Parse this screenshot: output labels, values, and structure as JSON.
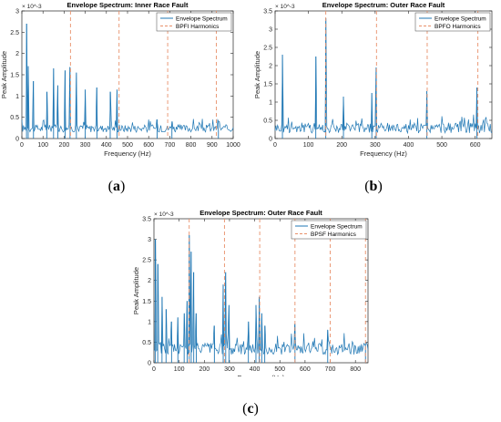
{
  "colors": {
    "spectrum": "#1f77b4",
    "harmonics": "#e8906a",
    "axis": "#262626",
    "grid": "#e6e6e6"
  },
  "captions": [
    {
      "open": "(",
      "letter": "a",
      "close": ")"
    },
    {
      "open": "(",
      "letter": "b",
      "close": ")"
    },
    {
      "open": "(",
      "letter": "c",
      "close": ")"
    }
  ],
  "chart_data": [
    {
      "type": "line",
      "title": "Envelope Spectrum: Inner Race Fault",
      "xlabel": "Frequency (Hz)",
      "ylabel": "Peak Amplitude",
      "yexponent": "× 10^-3",
      "xlim": [
        0,
        1000
      ],
      "ylim": [
        0,
        0.003
      ],
      "xticks": [
        0,
        100,
        200,
        300,
        400,
        500,
        600,
        700,
        800,
        900,
        1000
      ],
      "yticks": [
        0,
        0.0005,
        0.001,
        0.0015,
        0.002,
        0.0025,
        0.003
      ],
      "ytick_labels": [
        "0",
        "0.5",
        "1",
        "1.5",
        "2",
        "2.5",
        "3"
      ],
      "legend": {
        "position": "top-right",
        "entries": [
          "Envelope Spectrum",
          "BPFI Harmonics"
        ]
      },
      "series": [
        {
          "name": "Envelope Spectrum",
          "peaks": [
            [
              22,
              0.0027
            ],
            [
              30,
              0.0017
            ],
            [
              55,
              0.00135
            ],
            [
              118,
              0.0011
            ],
            [
              150,
              0.00165
            ],
            [
              170,
              0.00125
            ],
            [
              205,
              0.0016
            ],
            [
              228,
              0.00168
            ],
            [
              258,
              0.00155
            ],
            [
              300,
              0.00115
            ],
            [
              355,
              0.0012
            ],
            [
              418,
              0.0011
            ],
            [
              450,
              0.00115
            ],
            [
              640,
              0.00045
            ],
            [
              710,
              0.0004
            ],
            [
              930,
              0.0004
            ]
          ],
          "baseline": {
            "low": 0.00015,
            "high": 0.0004
          }
        },
        {
          "name": "BPFI Harmonics",
          "x": [
            230,
            460,
            690,
            920
          ]
        }
      ]
    },
    {
      "type": "line",
      "title": "Envelope Spectrum: Outer Race Fault",
      "xlabel": "Frequency (Hz)",
      "ylabel": "Peak Amplitude",
      "yexponent": "× 10^-3",
      "xlim": [
        0,
        650
      ],
      "ylim": [
        0,
        0.0035
      ],
      "xticks": [
        0,
        100,
        200,
        300,
        400,
        500,
        600
      ],
      "yticks": [
        0,
        0.0005,
        0.001,
        0.0015,
        0.002,
        0.0025,
        0.003,
        0.0035
      ],
      "ytick_labels": [
        "0",
        "0.5",
        "1",
        "1.5",
        "2",
        "2.5",
        "3",
        "3.5"
      ],
      "legend": {
        "position": "top-right",
        "entries": [
          "Envelope Spectrum",
          "BPFO Harmonics"
        ]
      },
      "series": [
        {
          "name": "Envelope Spectrum",
          "peaks": [
            [
              22,
              0.0023
            ],
            [
              122,
              0.00225
            ],
            [
              152,
              0.0033
            ],
            [
              205,
              0.00115
            ],
            [
              290,
              0.00125
            ],
            [
              303,
              0.00195
            ],
            [
              455,
              0.0013
            ],
            [
              605,
              0.0014
            ]
          ],
          "baseline": {
            "low": 0.00015,
            "high": 0.00055
          }
        },
        {
          "name": "BPFO Harmonics",
          "x": [
            152,
            304,
            456,
            608
          ]
        }
      ]
    },
    {
      "type": "line",
      "title": "Envelope Spectrum: Outer Race Fault",
      "xlabel": "Frequency (Hz)",
      "ylabel": "Peak Amplitude",
      "yexponent": "× 10^-3",
      "xlim": [
        0,
        850
      ],
      "ylim": [
        0,
        0.0035
      ],
      "xticks": [
        0,
        100,
        200,
        300,
        400,
        500,
        600,
        700,
        800
      ],
      "yticks": [
        0,
        0.0005,
        0.001,
        0.0015,
        0.002,
        0.0025,
        0.003,
        0.0035
      ],
      "ytick_labels": [
        "0",
        "0.5",
        "1",
        "1.5",
        "2",
        "2.5",
        "3",
        "3.5"
      ],
      "legend": {
        "position": "top-right",
        "entries": [
          "Envelope Spectrum",
          "BPSF Harmonics"
        ]
      },
      "series": [
        {
          "name": "Envelope Spectrum",
          "peaks": [
            [
              5,
              0.003
            ],
            [
              15,
              0.0024
            ],
            [
              32,
              0.0016
            ],
            [
              48,
              0.0013
            ],
            [
              70,
              0.001
            ],
            [
              95,
              0.0011
            ],
            [
              120,
              0.0012
            ],
            [
              132,
              0.0015
            ],
            [
              140,
              0.0031
            ],
            [
              148,
              0.0027
            ],
            [
              158,
              0.0022
            ],
            [
              168,
              0.0012
            ],
            [
              240,
              0.0009
            ],
            [
              275,
              0.0019
            ],
            [
              285,
              0.0022
            ],
            [
              298,
              0.0014
            ],
            [
              375,
              0.001
            ],
            [
              405,
              0.0014
            ],
            [
              418,
              0.0016
            ],
            [
              428,
              0.0012
            ],
            [
              440,
              0.0009
            ],
            [
              560,
              0.00095
            ],
            [
              690,
              0.0008
            ],
            [
              840,
              0.00045
            ]
          ],
          "baseline": {
            "low": 0.0002,
            "high": 0.0006
          }
        },
        {
          "name": "BPSF Harmonics",
          "x": [
            140,
            280,
            420,
            560,
            700,
            840
          ]
        }
      ]
    }
  ]
}
